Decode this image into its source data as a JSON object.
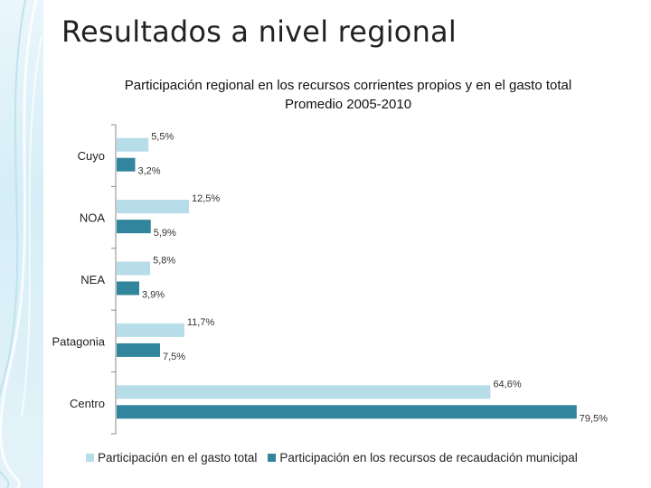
{
  "slide": {
    "title": "Resultados a nivel regional"
  },
  "colors": {
    "gasto": "#b7dde9",
    "recursos": "#31859c",
    "axis": "#888888",
    "deco": "#cfe9f3"
  },
  "chart_data": {
    "type": "bar",
    "orientation": "horizontal",
    "title_lines": [
      "Participación regional en los recursos corrientes propios y en el gasto total",
      "Promedio 2005-2010"
    ],
    "categories": [
      "Cuyo",
      "NOA",
      "NEA",
      "Patagonia",
      "Centro"
    ],
    "series": [
      {
        "name": "Participación en el gasto total",
        "values": [
          5.5,
          12.5,
          5.8,
          11.7,
          64.6
        ],
        "labels": [
          "5,5%",
          "12,5%",
          "5,8%",
          "11,7%",
          "64,6%"
        ]
      },
      {
        "name": "Participación en los recursos de recaudación municipal",
        "values": [
          3.2,
          5.9,
          3.9,
          7.5,
          79.5
        ],
        "labels": [
          "3,2%",
          "5,9%",
          "3,9%",
          "7,5%",
          "79,5%"
        ]
      }
    ],
    "xlim": [
      0,
      80
    ],
    "legend_position": "bottom",
    "grid": false
  }
}
